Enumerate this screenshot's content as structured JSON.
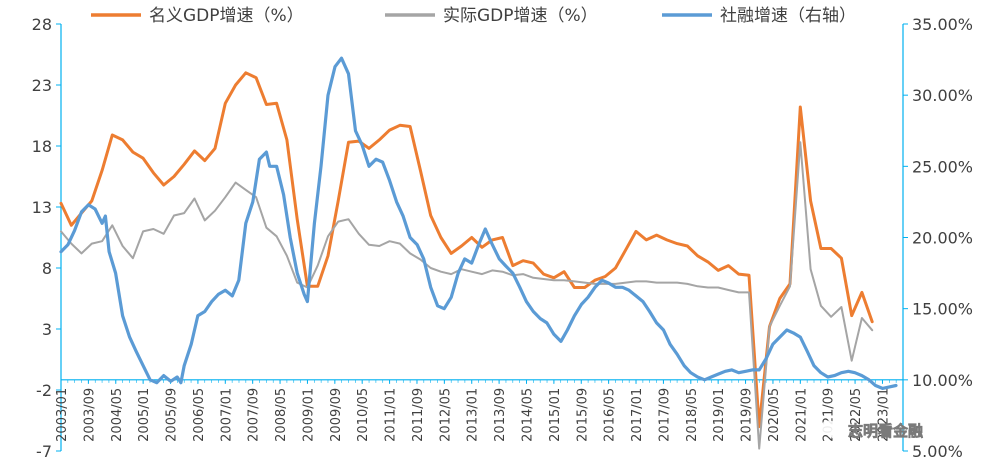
{
  "chart_data": {
    "type": "line",
    "legend_position": "top",
    "grid": false,
    "series": [
      {
        "name": "名义GDP增速（%）",
        "axis": "left",
        "color": "#ED7D31",
        "points": [
          [
            2003.0,
            13.3
          ],
          [
            2003.25,
            11.5
          ],
          [
            2003.5,
            12.5
          ],
          [
            2003.75,
            13.5
          ],
          [
            2004.0,
            16.0
          ],
          [
            2004.25,
            18.9
          ],
          [
            2004.5,
            18.5
          ],
          [
            2004.75,
            17.5
          ],
          [
            2005.0,
            17.0
          ],
          [
            2005.25,
            15.8
          ],
          [
            2005.5,
            14.8
          ],
          [
            2005.75,
            15.5
          ],
          [
            2006.0,
            16.5
          ],
          [
            2006.25,
            17.6
          ],
          [
            2006.5,
            16.8
          ],
          [
            2006.75,
            17.8
          ],
          [
            2007.0,
            21.5
          ],
          [
            2007.25,
            23.0
          ],
          [
            2007.5,
            24.0
          ],
          [
            2007.75,
            23.6
          ],
          [
            2008.0,
            21.4
          ],
          [
            2008.25,
            21.5
          ],
          [
            2008.5,
            18.5
          ],
          [
            2008.75,
            12.0
          ],
          [
            2009.0,
            6.5
          ],
          [
            2009.25,
            6.5
          ],
          [
            2009.5,
            9.0
          ],
          [
            2009.75,
            13.5
          ],
          [
            2010.0,
            18.3
          ],
          [
            2010.25,
            18.4
          ],
          [
            2010.5,
            17.8
          ],
          [
            2010.75,
            18.5
          ],
          [
            2011.0,
            19.3
          ],
          [
            2011.25,
            19.7
          ],
          [
            2011.5,
            19.6
          ],
          [
            2011.75,
            16.0
          ],
          [
            2012.0,
            12.3
          ],
          [
            2012.25,
            10.5
          ],
          [
            2012.5,
            9.2
          ],
          [
            2012.75,
            9.8
          ],
          [
            2013.0,
            10.5
          ],
          [
            2013.25,
            9.7
          ],
          [
            2013.5,
            10.3
          ],
          [
            2013.75,
            10.5
          ],
          [
            2014.0,
            8.2
          ],
          [
            2014.25,
            8.6
          ],
          [
            2014.5,
            8.4
          ],
          [
            2014.75,
            7.5
          ],
          [
            2015.0,
            7.2
          ],
          [
            2015.25,
            7.7
          ],
          [
            2015.5,
            6.4
          ],
          [
            2015.75,
            6.4
          ],
          [
            2016.0,
            7.0
          ],
          [
            2016.25,
            7.3
          ],
          [
            2016.5,
            8.0
          ],
          [
            2016.75,
            9.5
          ],
          [
            2017.0,
            11.0
          ],
          [
            2017.25,
            10.3
          ],
          [
            2017.5,
            10.7
          ],
          [
            2017.75,
            10.3
          ],
          [
            2018.0,
            10.0
          ],
          [
            2018.25,
            9.8
          ],
          [
            2018.5,
            9.0
          ],
          [
            2018.75,
            8.5
          ],
          [
            2019.0,
            7.8
          ],
          [
            2019.25,
            8.2
          ],
          [
            2019.5,
            7.5
          ],
          [
            2019.75,
            7.4
          ],
          [
            2020.0,
            -5.0
          ],
          [
            2020.25,
            3.2
          ],
          [
            2020.5,
            5.5
          ],
          [
            2020.75,
            6.7
          ],
          [
            2021.0,
            21.2
          ],
          [
            2021.25,
            13.5
          ],
          [
            2021.5,
            9.6
          ],
          [
            2021.75,
            9.6
          ],
          [
            2022.0,
            8.8
          ],
          [
            2022.25,
            4.1
          ],
          [
            2022.5,
            6.0
          ],
          [
            2022.75,
            3.6
          ]
        ]
      },
      {
        "name": "实际GDP增速（%）",
        "axis": "left",
        "color": "#A5A5A5",
        "points": [
          [
            2003.0,
            11.0
          ],
          [
            2003.25,
            10.0
          ],
          [
            2003.5,
            9.2
          ],
          [
            2003.75,
            10.0
          ],
          [
            2004.0,
            10.2
          ],
          [
            2004.25,
            11.5
          ],
          [
            2004.5,
            9.8
          ],
          [
            2004.75,
            8.8
          ],
          [
            2005.0,
            11.0
          ],
          [
            2005.25,
            11.2
          ],
          [
            2005.5,
            10.8
          ],
          [
            2005.75,
            12.3
          ],
          [
            2006.0,
            12.5
          ],
          [
            2006.25,
            13.7
          ],
          [
            2006.5,
            11.9
          ],
          [
            2006.75,
            12.7
          ],
          [
            2007.0,
            13.8
          ],
          [
            2007.25,
            15.0
          ],
          [
            2007.5,
            14.4
          ],
          [
            2007.75,
            13.8
          ],
          [
            2008.0,
            11.3
          ],
          [
            2008.25,
            10.6
          ],
          [
            2008.5,
            9.0
          ],
          [
            2008.75,
            6.8
          ],
          [
            2009.0,
            6.4
          ],
          [
            2009.25,
            8.2
          ],
          [
            2009.5,
            10.6
          ],
          [
            2009.75,
            11.8
          ],
          [
            2010.0,
            12.0
          ],
          [
            2010.25,
            10.8
          ],
          [
            2010.5,
            9.9
          ],
          [
            2010.75,
            9.8
          ],
          [
            2011.0,
            10.2
          ],
          [
            2011.25,
            10.0
          ],
          [
            2011.5,
            9.2
          ],
          [
            2011.75,
            8.7
          ],
          [
            2012.0,
            8.0
          ],
          [
            2012.25,
            7.7
          ],
          [
            2012.5,
            7.5
          ],
          [
            2012.75,
            7.9
          ],
          [
            2013.0,
            7.7
          ],
          [
            2013.25,
            7.5
          ],
          [
            2013.5,
            7.8
          ],
          [
            2013.75,
            7.7
          ],
          [
            2014.0,
            7.4
          ],
          [
            2014.25,
            7.5
          ],
          [
            2014.5,
            7.2
          ],
          [
            2014.75,
            7.1
          ],
          [
            2015.0,
            7.0
          ],
          [
            2015.25,
            7.0
          ],
          [
            2015.5,
            6.9
          ],
          [
            2015.75,
            6.8
          ],
          [
            2016.0,
            6.7
          ],
          [
            2016.25,
            6.7
          ],
          [
            2016.5,
            6.7
          ],
          [
            2016.75,
            6.8
          ],
          [
            2017.0,
            6.9
          ],
          [
            2017.25,
            6.9
          ],
          [
            2017.5,
            6.8
          ],
          [
            2017.75,
            6.8
          ],
          [
            2018.0,
            6.8
          ],
          [
            2018.25,
            6.7
          ],
          [
            2018.5,
            6.5
          ],
          [
            2018.75,
            6.4
          ],
          [
            2019.0,
            6.4
          ],
          [
            2019.25,
            6.2
          ],
          [
            2019.5,
            6.0
          ],
          [
            2019.75,
            6.0
          ],
          [
            2020.0,
            -6.8
          ],
          [
            2020.25,
            3.2
          ],
          [
            2020.5,
            4.9
          ],
          [
            2020.75,
            6.5
          ],
          [
            2021.0,
            18.3
          ],
          [
            2021.25,
            7.9
          ],
          [
            2021.5,
            4.9
          ],
          [
            2021.75,
            4.0
          ],
          [
            2022.0,
            4.8
          ],
          [
            2022.25,
            0.4
          ],
          [
            2022.5,
            3.9
          ],
          [
            2022.75,
            2.9
          ]
        ]
      },
      {
        "name": "社融增速（右轴）",
        "axis": "right",
        "color": "#5B9BD5",
        "points": [
          [
            2003.0,
            19.0
          ],
          [
            2003.17,
            19.5
          ],
          [
            2003.33,
            20.5
          ],
          [
            2003.5,
            21.8
          ],
          [
            2003.67,
            22.3
          ],
          [
            2003.83,
            22.0
          ],
          [
            2004.0,
            21.0
          ],
          [
            2004.08,
            21.5
          ],
          [
            2004.17,
            19.0
          ],
          [
            2004.33,
            17.5
          ],
          [
            2004.5,
            14.5
          ],
          [
            2004.67,
            13.0
          ],
          [
            2004.83,
            12.0
          ],
          [
            2005.0,
            11.0
          ],
          [
            2005.17,
            10.0
          ],
          [
            2005.33,
            9.8
          ],
          [
            2005.5,
            10.3
          ],
          [
            2005.67,
            9.9
          ],
          [
            2005.83,
            10.2
          ],
          [
            2005.92,
            9.8
          ],
          [
            2006.0,
            11.0
          ],
          [
            2006.17,
            12.5
          ],
          [
            2006.33,
            14.5
          ],
          [
            2006.5,
            14.8
          ],
          [
            2006.67,
            15.5
          ],
          [
            2006.83,
            16.0
          ],
          [
            2007.0,
            16.3
          ],
          [
            2007.17,
            15.9
          ],
          [
            2007.33,
            17.0
          ],
          [
            2007.5,
            21.0
          ],
          [
            2007.67,
            22.5
          ],
          [
            2007.83,
            25.5
          ],
          [
            2008.0,
            26.0
          ],
          [
            2008.08,
            25.0
          ],
          [
            2008.25,
            25.0
          ],
          [
            2008.42,
            23.0
          ],
          [
            2008.58,
            20.0
          ],
          [
            2008.75,
            17.5
          ],
          [
            2008.92,
            16.0
          ],
          [
            2009.0,
            15.5
          ],
          [
            2009.17,
            21.0
          ],
          [
            2009.33,
            25.0
          ],
          [
            2009.5,
            30.0
          ],
          [
            2009.67,
            32.0
          ],
          [
            2009.83,
            32.6
          ],
          [
            2010.0,
            31.5
          ],
          [
            2010.17,
            27.5
          ],
          [
            2010.33,
            26.5
          ],
          [
            2010.5,
            25.0
          ],
          [
            2010.67,
            25.5
          ],
          [
            2010.83,
            25.3
          ],
          [
            2011.0,
            24.0
          ],
          [
            2011.17,
            22.5
          ],
          [
            2011.33,
            21.5
          ],
          [
            2011.5,
            20.0
          ],
          [
            2011.67,
            19.5
          ],
          [
            2011.83,
            18.5
          ],
          [
            2012.0,
            16.5
          ],
          [
            2012.17,
            15.2
          ],
          [
            2012.33,
            15.0
          ],
          [
            2012.5,
            15.8
          ],
          [
            2012.67,
            17.5
          ],
          [
            2012.83,
            18.5
          ],
          [
            2013.0,
            18.2
          ],
          [
            2013.17,
            19.5
          ],
          [
            2013.33,
            20.6
          ],
          [
            2013.5,
            19.5
          ],
          [
            2013.67,
            18.5
          ],
          [
            2013.83,
            18.0
          ],
          [
            2014.0,
            17.5
          ],
          [
            2014.17,
            16.5
          ],
          [
            2014.33,
            15.5
          ],
          [
            2014.5,
            14.8
          ],
          [
            2014.67,
            14.3
          ],
          [
            2014.83,
            14.0
          ],
          [
            2015.0,
            13.2
          ],
          [
            2015.17,
            12.7
          ],
          [
            2015.33,
            13.5
          ],
          [
            2015.5,
            14.5
          ],
          [
            2015.67,
            15.3
          ],
          [
            2015.83,
            15.8
          ],
          [
            2016.0,
            16.5
          ],
          [
            2016.17,
            17.0
          ],
          [
            2016.33,
            16.8
          ],
          [
            2016.5,
            16.5
          ],
          [
            2016.67,
            16.5
          ],
          [
            2016.83,
            16.3
          ],
          [
            2017.0,
            15.9
          ],
          [
            2017.17,
            15.5
          ],
          [
            2017.33,
            14.8
          ],
          [
            2017.5,
            14.0
          ],
          [
            2017.67,
            13.5
          ],
          [
            2017.83,
            12.5
          ],
          [
            2018.0,
            11.8
          ],
          [
            2018.17,
            11.0
          ],
          [
            2018.33,
            10.5
          ],
          [
            2018.5,
            10.2
          ],
          [
            2018.67,
            10.0
          ],
          [
            2018.83,
            10.2
          ],
          [
            2019.0,
            10.4
          ],
          [
            2019.17,
            10.6
          ],
          [
            2019.33,
            10.7
          ],
          [
            2019.5,
            10.5
          ],
          [
            2019.67,
            10.6
          ],
          [
            2019.83,
            10.7
          ],
          [
            2020.0,
            10.7
          ],
          [
            2020.17,
            11.5
          ],
          [
            2020.33,
            12.5
          ],
          [
            2020.5,
            13.0
          ],
          [
            2020.67,
            13.5
          ],
          [
            2020.83,
            13.3
          ],
          [
            2021.0,
            13.0
          ],
          [
            2021.17,
            12.0
          ],
          [
            2021.33,
            11.0
          ],
          [
            2021.5,
            10.5
          ],
          [
            2021.67,
            10.2
          ],
          [
            2021.83,
            10.3
          ],
          [
            2022.0,
            10.5
          ],
          [
            2022.17,
            10.6
          ],
          [
            2022.33,
            10.5
          ],
          [
            2022.5,
            10.3
          ],
          [
            2022.67,
            10.0
          ],
          [
            2022.83,
            9.6
          ],
          [
            2023.0,
            9.4
          ],
          [
            2023.17,
            9.5
          ],
          [
            2023.33,
            9.6
          ]
        ]
      }
    ],
    "y_left_ticks": [
      "28",
      "23",
      "18",
      "13",
      "8",
      "3",
      "-2",
      "-7"
    ],
    "y_left_range": [
      -7,
      28
    ],
    "y_right_ticks": [
      "35.00%",
      "30.00%",
      "25.00%",
      "20.00%",
      "15.00%",
      "10.00%",
      "5.00%"
    ],
    "y_right_range": [
      5,
      35
    ],
    "x_range": [
      2003.0,
      2023.5
    ],
    "x_tick_labels": [
      "2003/01",
      "2003/09",
      "2004/05",
      "2005/01",
      "2005/09",
      "2006/05",
      "2007/01",
      "2007/09",
      "2008/05",
      "2009/01",
      "2009/09",
      "2010/05",
      "2011/01",
      "2011/09",
      "2012/05",
      "2013/01",
      "2013/09",
      "2014/05",
      "2015/01",
      "2015/09",
      "2016/05",
      "2017/01",
      "2017/09",
      "2018/05",
      "2019/01",
      "2019/09",
      "2020/05",
      "2021/01",
      "2021/09",
      "2022/05",
      "2023/01"
    ]
  },
  "watermark": {
    "text": "志明看金融",
    "icon": "wechat-icon"
  },
  "colors": {
    "axis": "#00B0F0",
    "text": "#404040"
  }
}
